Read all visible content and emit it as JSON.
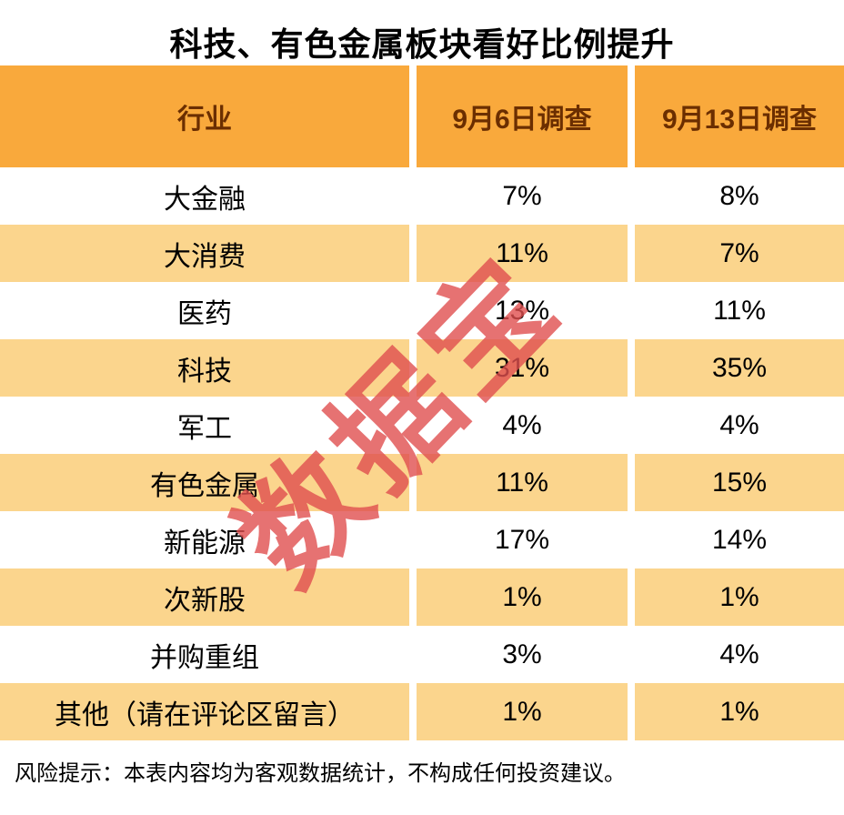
{
  "title": "科技、有色金属板块看好比例提升",
  "watermark": "数据宝",
  "footer": "风险提示：本表内容均为客观数据统计，不构成任何投资建议。",
  "colors": {
    "header_bg": "#F9A93C",
    "alt_row_bg": "#FBD58D",
    "watermark_red": "#E04F4F",
    "header_text": "#6B2E00"
  },
  "chart_data": {
    "type": "table",
    "title": "科技、有色金属板块看好比例提升",
    "columns": [
      "行业",
      "9月6日调查",
      "9月13日调查"
    ],
    "rows": [
      [
        "大金融",
        "7%",
        "8%"
      ],
      [
        "大消费",
        "11%",
        "7%"
      ],
      [
        "医药",
        "13%",
        "11%"
      ],
      [
        "科技",
        "31%",
        "35%"
      ],
      [
        "军工",
        "4%",
        "4%"
      ],
      [
        "有色金属",
        "11%",
        "15%"
      ],
      [
        "新能源",
        "17%",
        "14%"
      ],
      [
        "次新股",
        "1%",
        "1%"
      ],
      [
        "并购重组",
        "3%",
        "4%"
      ],
      [
        "其他（请在评论区留言）",
        "1%",
        "1%"
      ]
    ],
    "note": "风险提示：本表内容均为客观数据统计，不构成任何投资建议。",
    "legend_position": "none",
    "grid": false
  }
}
